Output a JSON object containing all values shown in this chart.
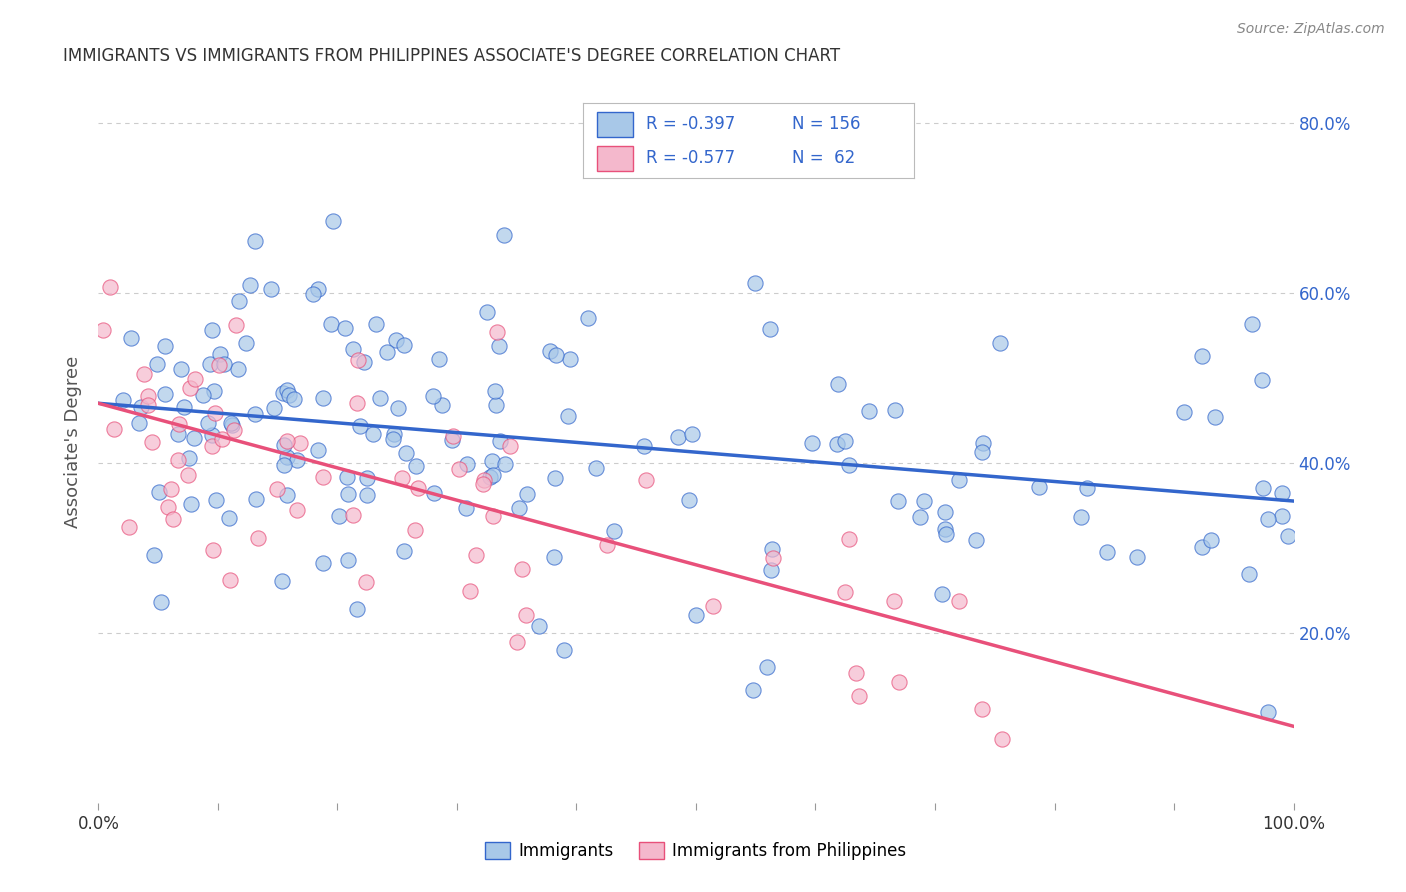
{
  "title": "IMMIGRANTS VS IMMIGRANTS FROM PHILIPPINES ASSOCIATE'S DEGREE CORRELATION CHART",
  "source": "Source: ZipAtlas.com",
  "ylabel": "Associate's Degree",
  "xlim": [
    0.0,
    1.0
  ],
  "ylim": [
    0.0,
    0.85
  ],
  "y_tick_labels_right": [
    "20.0%",
    "40.0%",
    "60.0%",
    "80.0%"
  ],
  "x_tick_labels": [
    "0.0%",
    "",
    "",
    "",
    "",
    "",
    "",
    "",
    "",
    "",
    "100.0%"
  ],
  "blue_scatter_color": "#a8c8e8",
  "pink_scatter_color": "#f4b8cc",
  "line_blue": "#3366cc",
  "line_pink": "#e8507a",
  "legend_text_color": "#3366cc",
  "background_color": "#ffffff",
  "grid_color": "#cccccc",
  "title_color": "#333333",
  "axis_label_color": "#555555",
  "blue_intercept": 0.47,
  "blue_slope": -0.115,
  "pink_intercept": 0.47,
  "pink_slope": -0.38,
  "seed": 42
}
